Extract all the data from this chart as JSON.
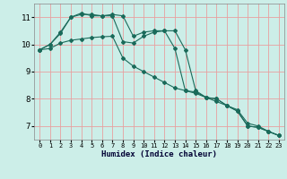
{
  "title": "",
  "xlabel": "Humidex (Indice chaleur)",
  "ylabel": "",
  "bg_color": "#cceee8",
  "grid_color": "#e8a0a0",
  "line_color": "#1a6a5a",
  "xlim": [
    -0.5,
    23.5
  ],
  "ylim": [
    6.5,
    11.5
  ],
  "xticks": [
    0,
    1,
    2,
    3,
    4,
    5,
    6,
    7,
    8,
    9,
    10,
    11,
    12,
    13,
    14,
    15,
    16,
    17,
    18,
    19,
    20,
    21,
    22,
    23
  ],
  "yticks": [
    7,
    8,
    9,
    10,
    11
  ],
  "line1_x": [
    0,
    1,
    2,
    3,
    4,
    5,
    6,
    7,
    8,
    9,
    10,
    11,
    12,
    13,
    14,
    15,
    16,
    17,
    18,
    19,
    20,
    21,
    22,
    23
  ],
  "line1_y": [
    9.8,
    10.0,
    10.4,
    11.0,
    11.1,
    11.1,
    11.05,
    11.1,
    11.05,
    10.3,
    10.45,
    10.5,
    10.5,
    9.85,
    8.3,
    8.25,
    8.05,
    8.0,
    7.75,
    7.55,
    7.0,
    6.95,
    6.8,
    6.65
  ],
  "line2_x": [
    0,
    1,
    2,
    3,
    4,
    5,
    6,
    7,
    8,
    9,
    10,
    11,
    12,
    13,
    14,
    15,
    16,
    17,
    18,
    19,
    20,
    21,
    22,
    23
  ],
  "line2_y": [
    9.8,
    10.0,
    10.45,
    11.0,
    11.15,
    11.05,
    11.05,
    11.05,
    10.1,
    10.05,
    10.3,
    10.45,
    10.5,
    10.5,
    9.8,
    8.3,
    8.05,
    8.0,
    7.75,
    7.55,
    7.0,
    6.95,
    6.8,
    6.65
  ],
  "line3_x": [
    0,
    1,
    2,
    3,
    4,
    5,
    6,
    7,
    8,
    9,
    10,
    11,
    12,
    13,
    14,
    15,
    16,
    17,
    18,
    19,
    20,
    21,
    22,
    23
  ],
  "line3_y": [
    9.8,
    9.85,
    10.05,
    10.15,
    10.2,
    10.25,
    10.28,
    10.3,
    9.5,
    9.2,
    9.0,
    8.8,
    8.6,
    8.4,
    8.3,
    8.2,
    8.05,
    7.9,
    7.75,
    7.6,
    7.1,
    7.0,
    6.8,
    6.65
  ]
}
